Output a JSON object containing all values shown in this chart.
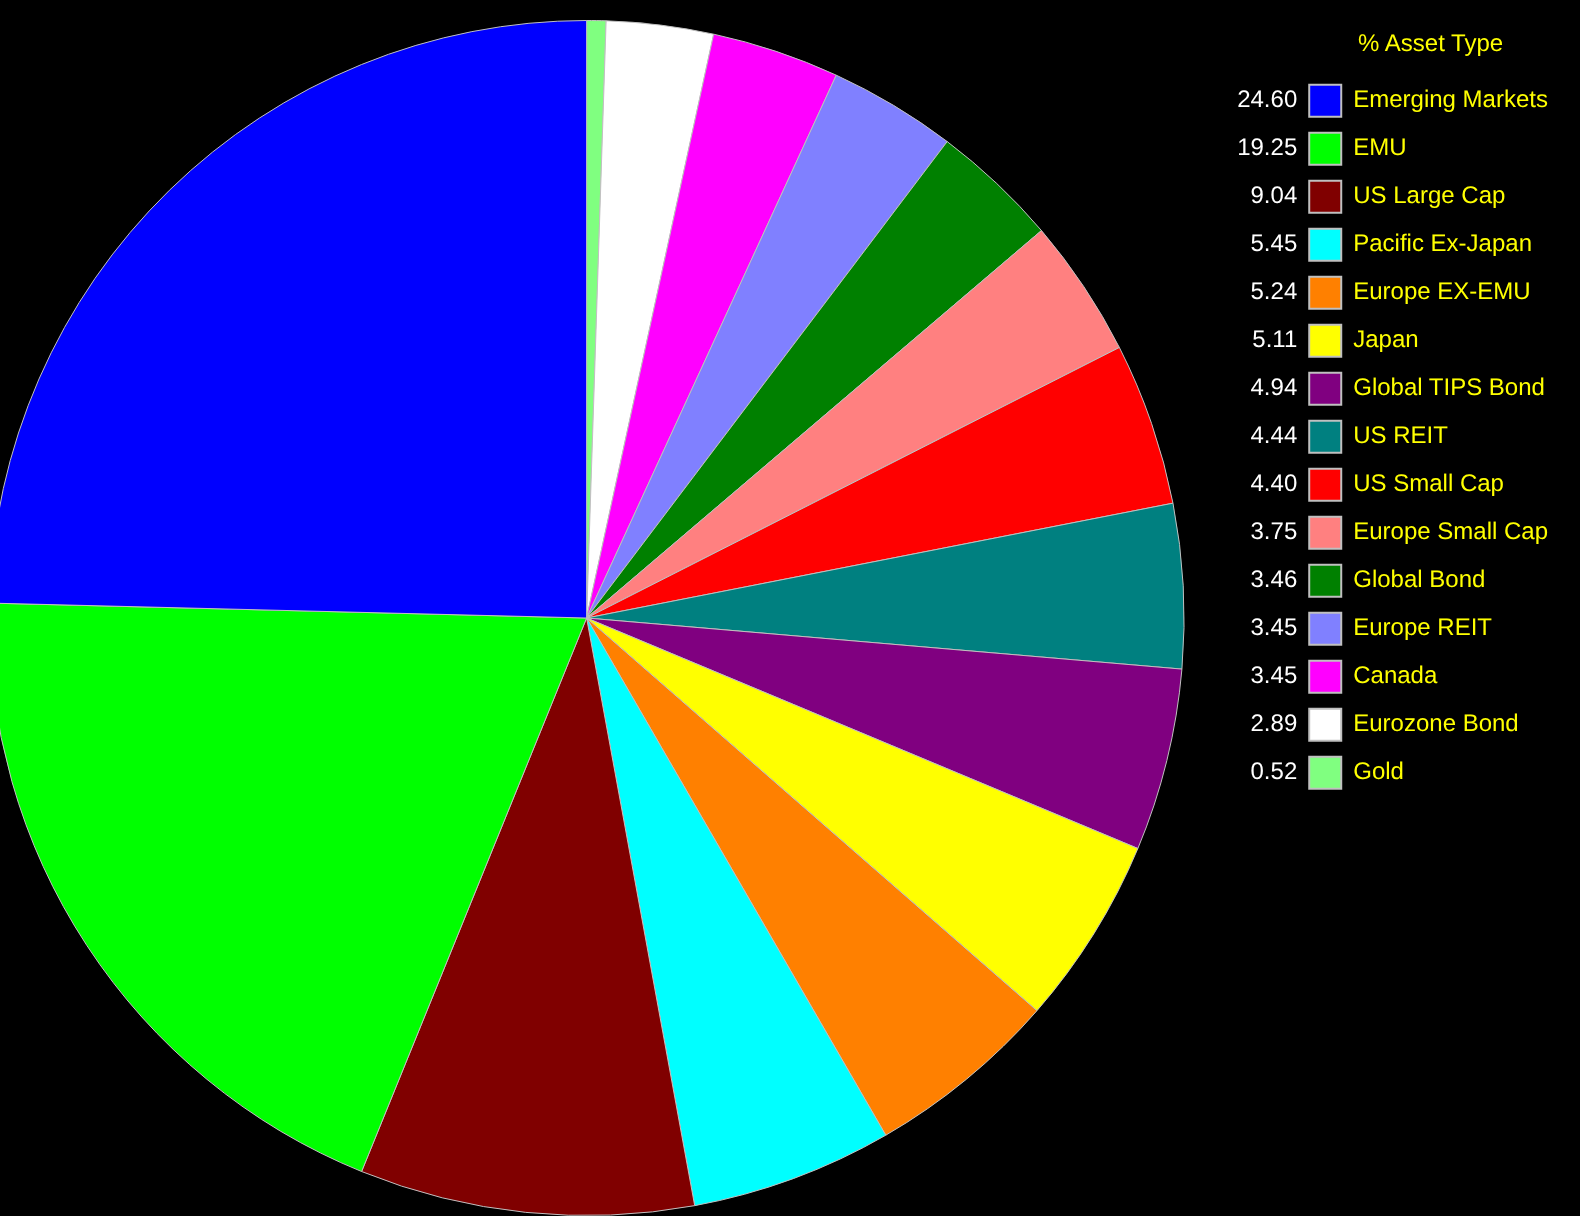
{
  "chart_data": {
    "type": "pie",
    "legend_title": "% Asset Type",
    "legend": "top right",
    "value_labels": [
      "24.60",
      "19.25",
      "9.04",
      "5.45",
      "5.24",
      "5.11",
      "4.94",
      "4.44",
      "4.40",
      "3.75",
      "3.46",
      "3.45",
      "3.45",
      "2.89",
      "0.52"
    ],
    "categories": [
      "Emerging Markets",
      "EMU",
      "US Large Cap",
      "Pacific Ex-Japan",
      "Europe EX-EMU",
      "Japan",
      "Global TIPS Bond",
      "US REIT",
      "US Small Cap",
      "Europe Small Cap",
      "Global Bond",
      "Europe REIT",
      "Canada",
      "Eurozone Bond",
      "Gold"
    ],
    "values": [
      24.6,
      19.25,
      9.04,
      5.45,
      5.24,
      5.11,
      4.94,
      4.44,
      4.4,
      3.75,
      3.46,
      3.45,
      3.45,
      2.89,
      0.52
    ],
    "colors": [
      "#0000ff",
      "#00ff00",
      "#800000",
      "#00ffff",
      "#ff8000",
      "#ffff00",
      "#800080",
      "#008080",
      "#ff0000",
      "#ff8080",
      "#008000",
      "#8080ff",
      "#ff00ff",
      "#ffffff",
      "#80ff80"
    ]
  }
}
